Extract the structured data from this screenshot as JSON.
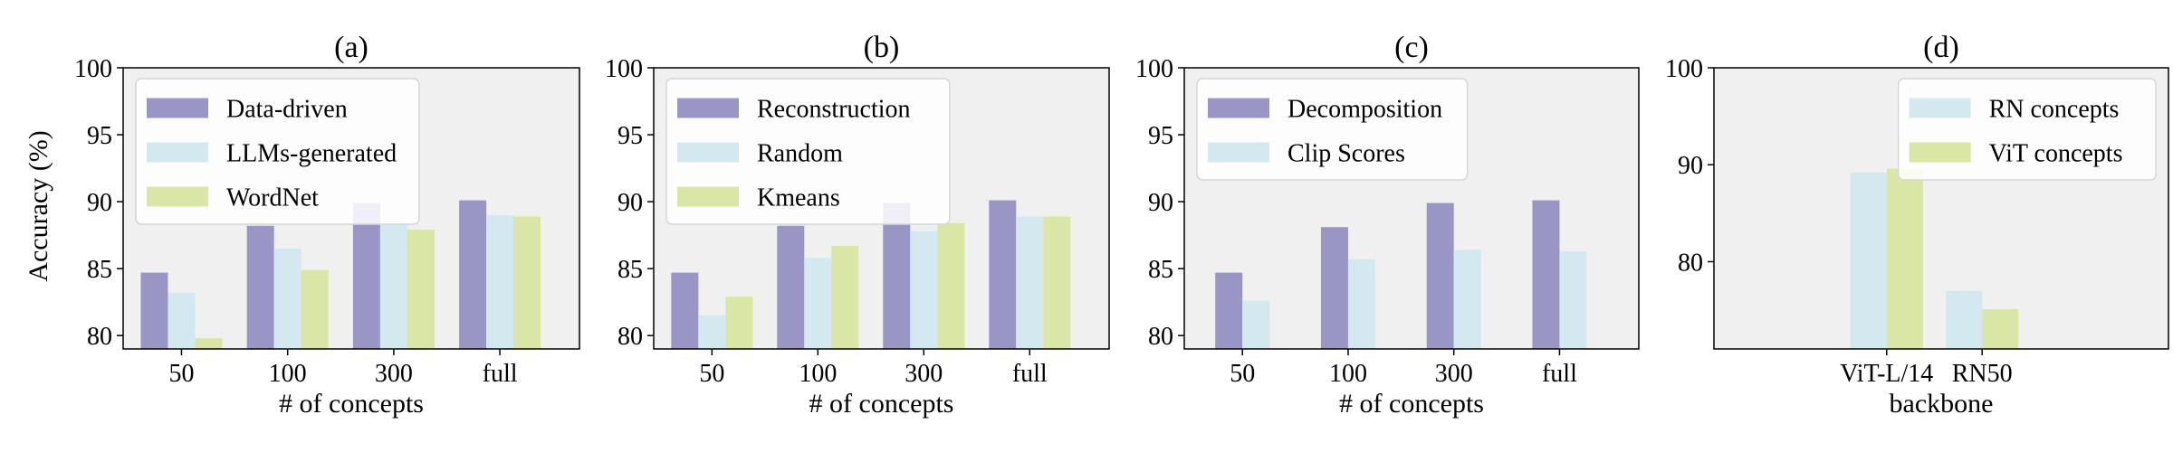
{
  "figure": {
    "ylabel": "Accuracy (%)"
  },
  "colors": {
    "purple": "#9996C6",
    "lightblue": "#D4E9EF",
    "lightgreen": "#D9E6A5",
    "plot_bg": "#F0F0F0"
  },
  "chart_data": [
    {
      "panel": "a",
      "title": "(a)",
      "type": "bar",
      "xlabel": "# of concepts",
      "ylabel": "Accuracy (%)",
      "ylim": [
        79,
        100
      ],
      "yticks": [
        80,
        85,
        90,
        95,
        100
      ],
      "categories": [
        "50",
        "100",
        "300",
        "full"
      ],
      "legend_loc": "upper-left",
      "series": [
        {
          "name": "Data-driven",
          "color": "#9996C6",
          "values": [
            84.7,
            88.2,
            89.9,
            90.1
          ]
        },
        {
          "name": "LLMs-generated",
          "color": "#D4E9EF",
          "values": [
            83.2,
            86.5,
            88.4,
            89.0
          ]
        },
        {
          "name": "WordNet",
          "color": "#D9E6A5",
          "values": [
            79.8,
            84.9,
            87.9,
            88.9
          ]
        }
      ]
    },
    {
      "panel": "b",
      "title": "(b)",
      "type": "bar",
      "xlabel": "# of concepts",
      "ylabel": "",
      "ylim": [
        79,
        100
      ],
      "yticks": [
        80,
        85,
        90,
        95,
        100
      ],
      "categories": [
        "50",
        "100",
        "300",
        "full"
      ],
      "legend_loc": "upper-left",
      "series": [
        {
          "name": "Reconstruction",
          "color": "#9996C6",
          "values": [
            84.7,
            88.2,
            89.9,
            90.1
          ]
        },
        {
          "name": "Random",
          "color": "#D4E9EF",
          "values": [
            81.5,
            85.8,
            87.8,
            88.9
          ]
        },
        {
          "name": "Kmeans",
          "color": "#D9E6A5",
          "values": [
            82.9,
            86.7,
            88.4,
            88.9
          ]
        }
      ]
    },
    {
      "panel": "c",
      "title": "(c)",
      "type": "bar",
      "xlabel": "# of concepts",
      "ylabel": "",
      "ylim": [
        79,
        100
      ],
      "yticks": [
        80,
        85,
        90,
        95,
        100
      ],
      "categories": [
        "50",
        "100",
        "300",
        "full"
      ],
      "legend_loc": "upper-left",
      "series": [
        {
          "name": "Decomposition",
          "color": "#9996C6",
          "values": [
            84.7,
            88.1,
            89.9,
            90.1
          ]
        },
        {
          "name": "Clip Scores",
          "color": "#D4E9EF",
          "values": [
            82.6,
            85.7,
            86.4,
            86.3
          ]
        }
      ]
    },
    {
      "panel": "d",
      "title": "(d)",
      "type": "bar",
      "xlabel": "backbone",
      "ylabel": "",
      "ylim": [
        71,
        100
      ],
      "yticks": [
        80,
        90,
        100
      ],
      "categories": [
        "ViT-L/14",
        "RN50"
      ],
      "legend_loc": "upper-right",
      "series": [
        {
          "name": "RN concepts",
          "color": "#D4E9EF",
          "values": [
            89.2,
            77.0
          ]
        },
        {
          "name": "ViT concepts",
          "color": "#D9E6A5",
          "values": [
            89.6,
            75.1
          ]
        }
      ]
    }
  ]
}
